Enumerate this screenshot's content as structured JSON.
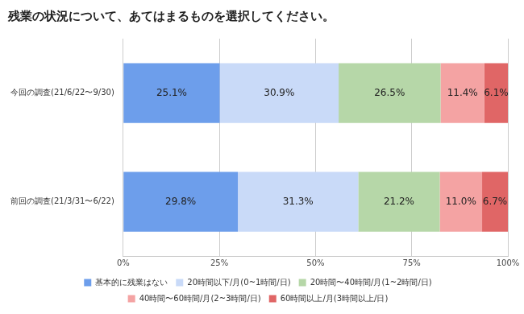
{
  "chart_data": {
    "type": "bar",
    "title": "残業の状況について、あてはまるものを選択してください。",
    "orientation": "horizontal",
    "stacked": true,
    "data_labels": true,
    "grid": true,
    "legend": "bottom",
    "categories": [
      "今回の調査(21/6/22〜9/30)",
      "前回の調査(21/3/31〜6/22)"
    ],
    "series": [
      {
        "name": "基本的に残業はない",
        "color": "#6d9eeb",
        "values": [
          25.1,
          29.8
        ],
        "value_labels": [
          "25.1%",
          "29.8%"
        ]
      },
      {
        "name": "20時間以下/月(0~1時間/日)",
        "color": "#c9daf8",
        "values": [
          30.9,
          31.3
        ],
        "value_labels": [
          "30.9%",
          "31.3%"
        ]
      },
      {
        "name": "20時間〜40時間/月(1~2時間/日)",
        "color": "#b6d7a8",
        "values": [
          26.5,
          21.2
        ],
        "value_labels": [
          "26.5%",
          "21.2%"
        ]
      },
      {
        "name": "40時間〜60時間/月(2~3時間/日)",
        "color": "#f4a3a3",
        "values": [
          11.4,
          11.0
        ],
        "value_labels": [
          "11.4%",
          "11.0%"
        ]
      },
      {
        "name": "60時間以上/月(3時間以上/日)",
        "color": "#e06666",
        "values": [
          6.1,
          6.7
        ],
        "value_labels": [
          "6.1%",
          "6.7%"
        ]
      }
    ],
    "xlim": [
      0,
      100
    ],
    "xticks": [
      {
        "value": 0,
        "label": "0%"
      },
      {
        "value": 25,
        "label": "25%"
      },
      {
        "value": 50,
        "label": "50%"
      },
      {
        "value": 75,
        "label": "75%"
      },
      {
        "value": 100,
        "label": "100%"
      }
    ]
  }
}
